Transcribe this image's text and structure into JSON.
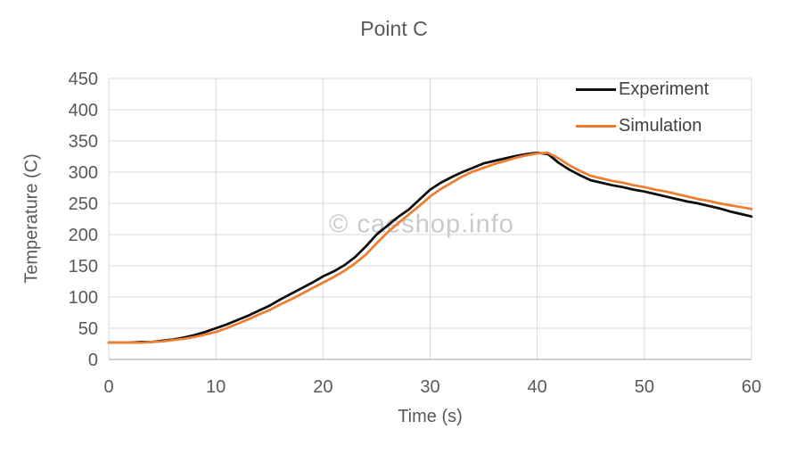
{
  "chart_data": {
    "type": "line",
    "title": "Point C",
    "xlabel": "Time (s)",
    "ylabel": "Temperature (C)",
    "xlim": [
      0,
      60
    ],
    "ylim": [
      0,
      450
    ],
    "xticks": [
      0,
      10,
      20,
      30,
      40,
      50,
      60
    ],
    "yticks": [
      0,
      50,
      100,
      150,
      200,
      250,
      300,
      350,
      400,
      450
    ],
    "grid": true,
    "legend_position": "top-right",
    "watermark": "© caeshop.info",
    "colors": {
      "background": "#ffffff",
      "grid": "#d9d9d9",
      "axis_line": "#bfbfbf",
      "tick_label": "#595959",
      "title": "#595959",
      "legend_text": "#404040",
      "watermark": "#c9c9ce",
      "experiment": "#0d0d0d",
      "simulation": "#ED7D31"
    },
    "series": [
      {
        "name": "Experiment",
        "color": "#0d0d0d",
        "points": [
          [
            0,
            27
          ],
          [
            1,
            27
          ],
          [
            2,
            27
          ],
          [
            3,
            28
          ],
          [
            4,
            28
          ],
          [
            5,
            30
          ],
          [
            6,
            32
          ],
          [
            7,
            35
          ],
          [
            8,
            39
          ],
          [
            9,
            44
          ],
          [
            10,
            50
          ],
          [
            11,
            56
          ],
          [
            12,
            63
          ],
          [
            13,
            70
          ],
          [
            14,
            78
          ],
          [
            15,
            86
          ],
          [
            16,
            96
          ],
          [
            17,
            105
          ],
          [
            18,
            114
          ],
          [
            19,
            123
          ],
          [
            20,
            133
          ],
          [
            21,
            141
          ],
          [
            22,
            151
          ],
          [
            23,
            164
          ],
          [
            24,
            181
          ],
          [
            25,
            200
          ],
          [
            26,
            214
          ],
          [
            27,
            228
          ],
          [
            28,
            240
          ],
          [
            29,
            256
          ],
          [
            30,
            272
          ],
          [
            31,
            283
          ],
          [
            32,
            292
          ],
          [
            33,
            300
          ],
          [
            34,
            307
          ],
          [
            35,
            314
          ],
          [
            36,
            318
          ],
          [
            37,
            322
          ],
          [
            38,
            326
          ],
          [
            39,
            329
          ],
          [
            40,
            331
          ],
          [
            41,
            329
          ],
          [
            42,
            315
          ],
          [
            43,
            304
          ],
          [
            44,
            295
          ],
          [
            45,
            287
          ],
          [
            46,
            283
          ],
          [
            47,
            279
          ],
          [
            48,
            276
          ],
          [
            49,
            272
          ],
          [
            50,
            269
          ],
          [
            51,
            265
          ],
          [
            52,
            261
          ],
          [
            53,
            257
          ],
          [
            54,
            253
          ],
          [
            55,
            250
          ],
          [
            56,
            246
          ],
          [
            57,
            242
          ],
          [
            58,
            237
          ],
          [
            59,
            233
          ],
          [
            60,
            229
          ]
        ]
      },
      {
        "name": "Simulation",
        "color": "#ED7D31",
        "points": [
          [
            0,
            27
          ],
          [
            1,
            27
          ],
          [
            2,
            27
          ],
          [
            3,
            27
          ],
          [
            4,
            28
          ],
          [
            5,
            29
          ],
          [
            6,
            31
          ],
          [
            7,
            33
          ],
          [
            8,
            36
          ],
          [
            9,
            40
          ],
          [
            10,
            44
          ],
          [
            11,
            50
          ],
          [
            12,
            57
          ],
          [
            13,
            64
          ],
          [
            14,
            72
          ],
          [
            15,
            79
          ],
          [
            16,
            88
          ],
          [
            17,
            96
          ],
          [
            18,
            105
          ],
          [
            19,
            114
          ],
          [
            20,
            123
          ],
          [
            21,
            132
          ],
          [
            22,
            142
          ],
          [
            23,
            154
          ],
          [
            24,
            168
          ],
          [
            25,
            186
          ],
          [
            26,
            203
          ],
          [
            27,
            218
          ],
          [
            28,
            232
          ],
          [
            29,
            246
          ],
          [
            30,
            261
          ],
          [
            31,
            273
          ],
          [
            32,
            283
          ],
          [
            33,
            293
          ],
          [
            34,
            301
          ],
          [
            35,
            307
          ],
          [
            36,
            313
          ],
          [
            37,
            318
          ],
          [
            38,
            323
          ],
          [
            39,
            327
          ],
          [
            40,
            330
          ],
          [
            41,
            331
          ],
          [
            42,
            322
          ],
          [
            43,
            311
          ],
          [
            44,
            302
          ],
          [
            45,
            294
          ],
          [
            46,
            290
          ],
          [
            47,
            286
          ],
          [
            48,
            283
          ],
          [
            49,
            279
          ],
          [
            50,
            276
          ],
          [
            51,
            272
          ],
          [
            52,
            269
          ],
          [
            53,
            265
          ],
          [
            54,
            261
          ],
          [
            55,
            257
          ],
          [
            56,
            254
          ],
          [
            57,
            250
          ],
          [
            58,
            247
          ],
          [
            59,
            244
          ],
          [
            60,
            241
          ]
        ]
      }
    ]
  }
}
